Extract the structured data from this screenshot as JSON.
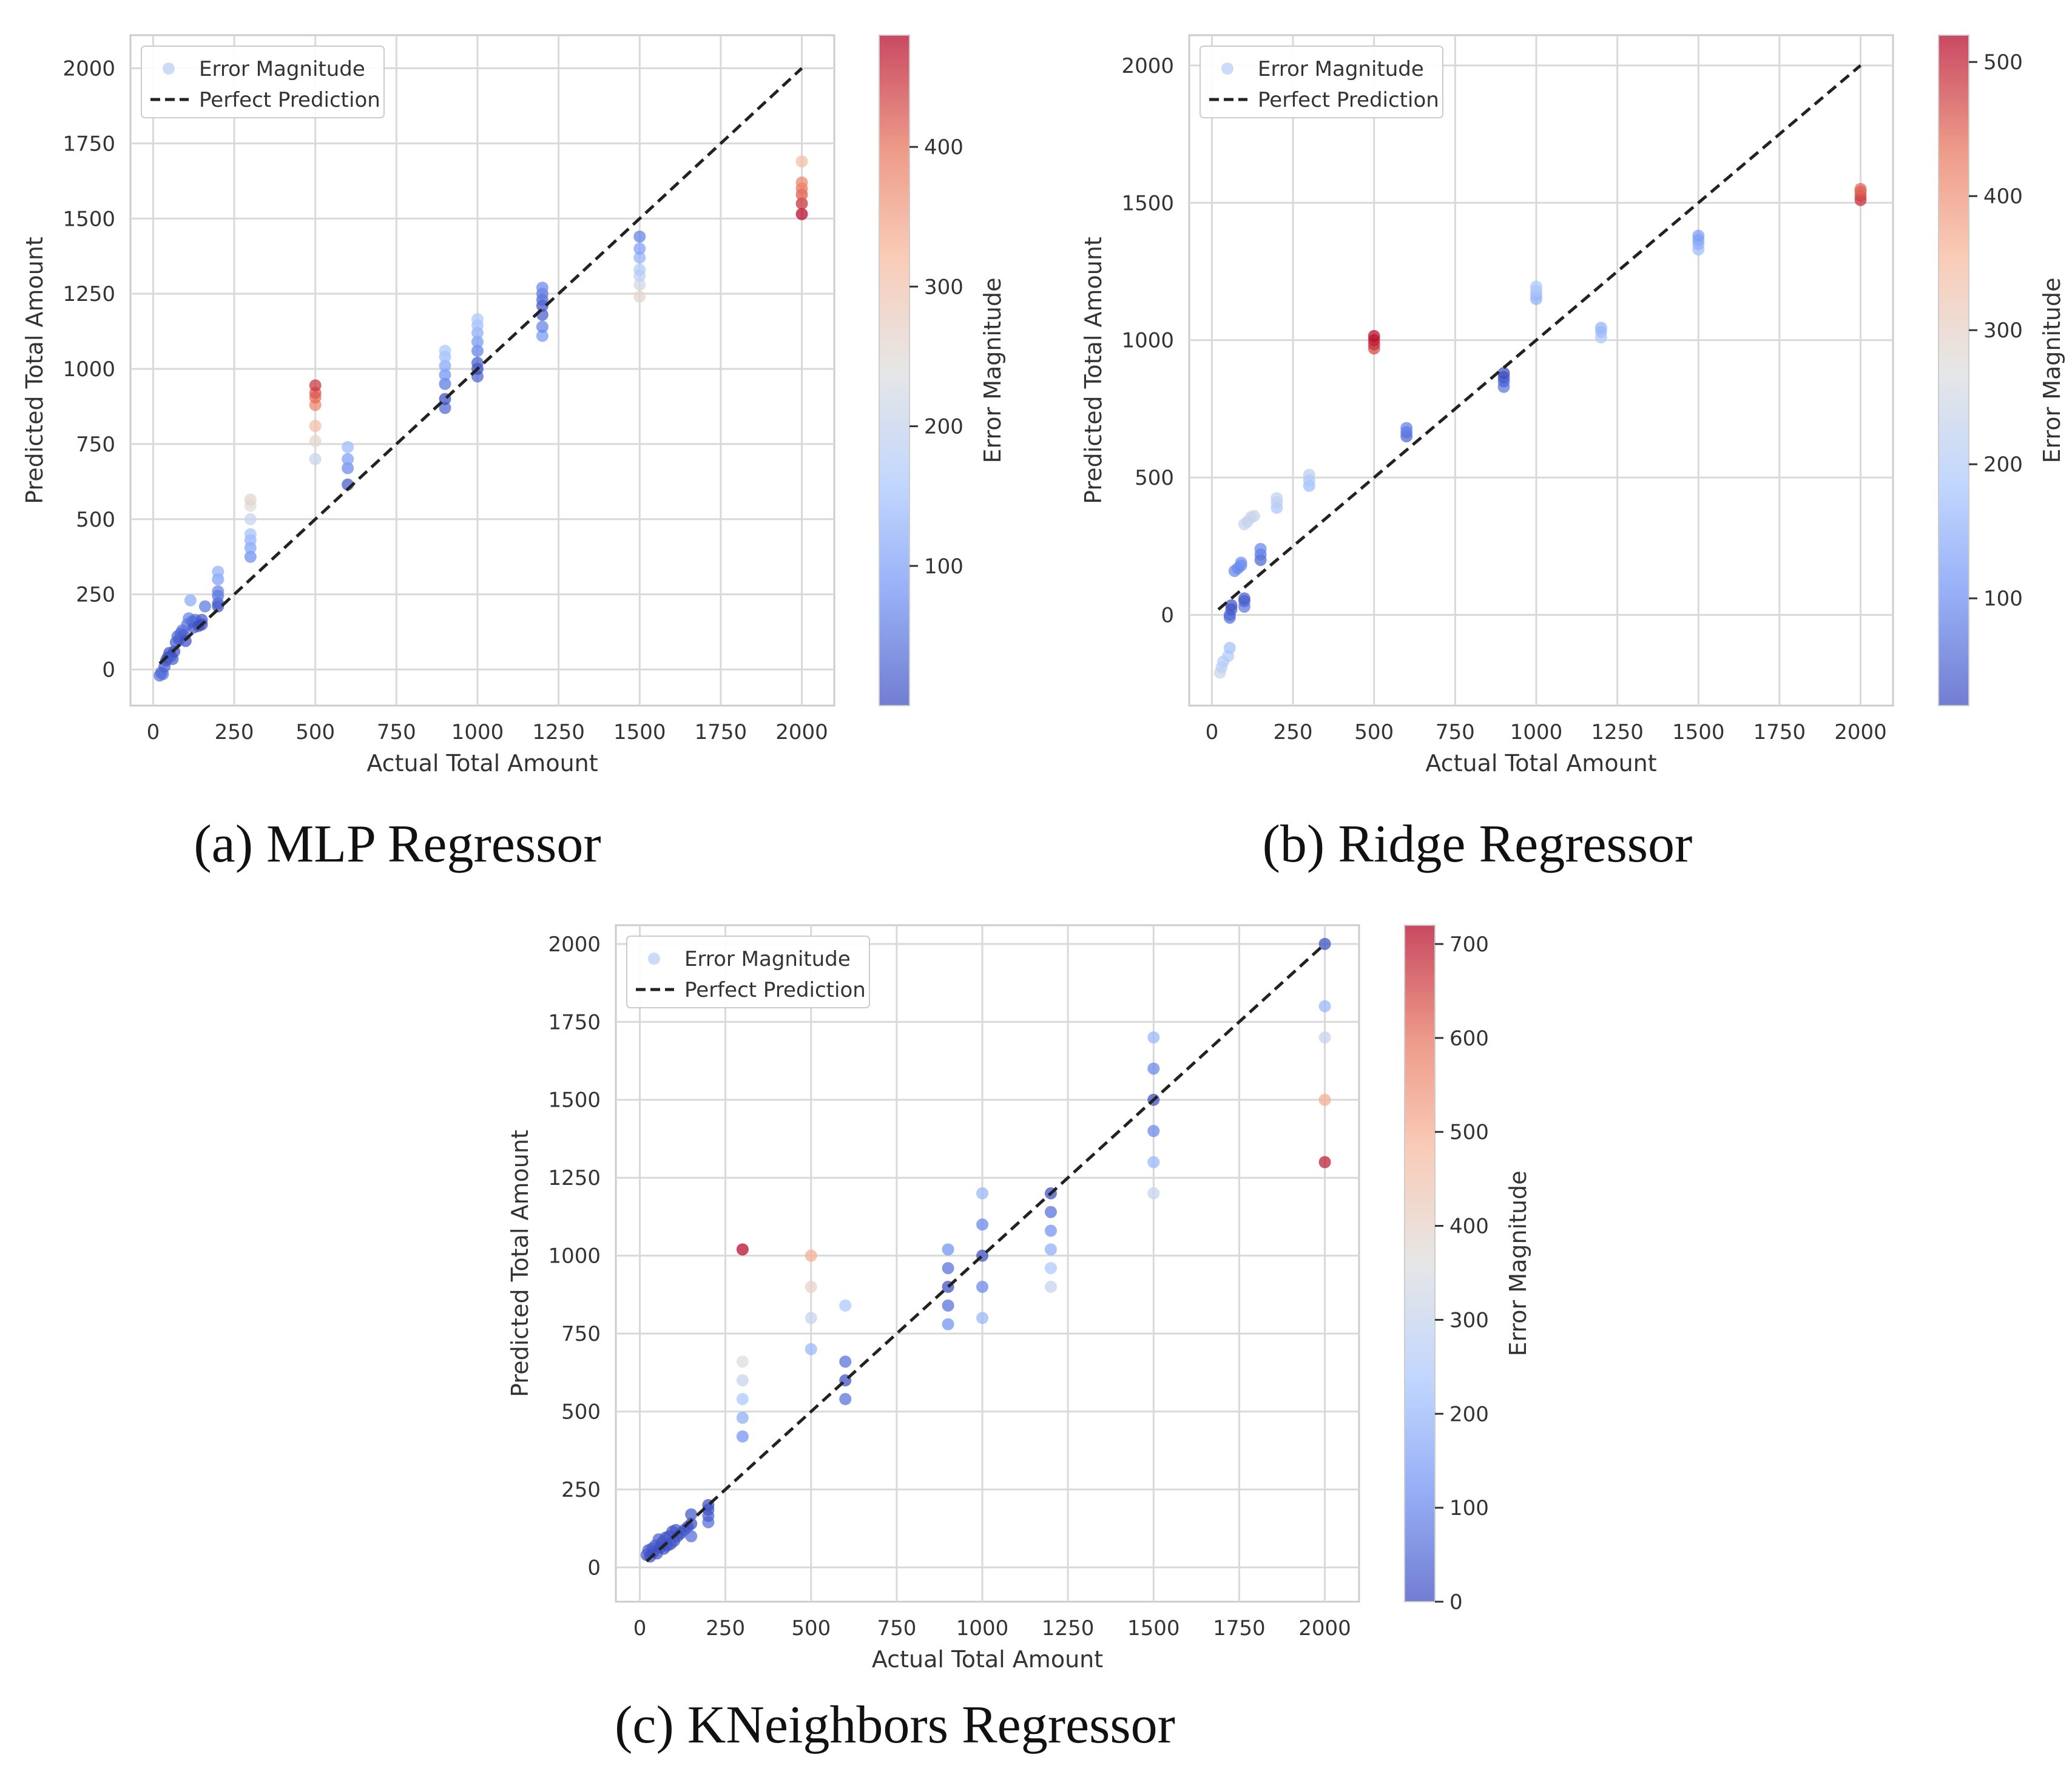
{
  "colormap": [
    "#3b4cc0",
    "#6f92f3",
    "#aac7fd",
    "#dddddd",
    "#f7b89c",
    "#e7745b",
    "#b40426"
  ],
  "chart_data": [
    {
      "type": "scatter",
      "title": "",
      "caption": "(a) MLP Regressor",
      "xlabel": "Actual Total Amount",
      "ylabel": "Predicted Total Amount",
      "xlim": [
        -70,
        2100
      ],
      "ylim": [
        -120,
        2110
      ],
      "xticks": [
        0,
        250,
        500,
        750,
        1000,
        1250,
        1500,
        1750,
        2000
      ],
      "yticks": [
        0,
        250,
        500,
        750,
        1000,
        1250,
        1500,
        1750,
        2000
      ],
      "grid": true,
      "legend": {
        "position": "top-left",
        "entries": [
          "Error Magnitude",
          "Perfect Prediction"
        ]
      },
      "diagonal": {
        "from": 20,
        "to": 2000
      },
      "colorbar": {
        "label": "Error Magnitude",
        "min": 0,
        "max": 480,
        "ticks": [
          100,
          200,
          300,
          400
        ]
      },
      "points": [
        [
          20,
          -20
        ],
        [
          25,
          -10
        ],
        [
          30,
          -15
        ],
        [
          35,
          10
        ],
        [
          40,
          30
        ],
        [
          45,
          40
        ],
        [
          50,
          55
        ],
        [
          55,
          45
        ],
        [
          60,
          35
        ],
        [
          65,
          60
        ],
        [
          70,
          90
        ],
        [
          75,
          110
        ],
        [
          80,
          100
        ],
        [
          85,
          120
        ],
        [
          90,
          130
        ],
        [
          95,
          115
        ],
        [
          100,
          95
        ],
        [
          105,
          150
        ],
        [
          110,
          170
        ],
        [
          115,
          230
        ],
        [
          120,
          160
        ],
        [
          125,
          140
        ],
        [
          130,
          165
        ],
        [
          140,
          145
        ],
        [
          150,
          165
        ],
        [
          160,
          210
        ],
        [
          150,
          150
        ],
        [
          200,
          210
        ],
        [
          200,
          220
        ],
        [
          200,
          245
        ],
        [
          200,
          260
        ],
        [
          200,
          300
        ],
        [
          200,
          325
        ],
        [
          300,
          375
        ],
        [
          300,
          405
        ],
        [
          300,
          430
        ],
        [
          300,
          450
        ],
        [
          300,
          500
        ],
        [
          300,
          545
        ],
        [
          300,
          565
        ],
        [
          500,
          700
        ],
        [
          500,
          760
        ],
        [
          500,
          810
        ],
        [
          500,
          880
        ],
        [
          500,
          905
        ],
        [
          500,
          920
        ],
        [
          500,
          945
        ],
        [
          600,
          615
        ],
        [
          600,
          670
        ],
        [
          600,
          700
        ],
        [
          600,
          740
        ],
        [
          900,
          870
        ],
        [
          900,
          900
        ],
        [
          900,
          950
        ],
        [
          900,
          980
        ],
        [
          900,
          1010
        ],
        [
          900,
          1040
        ],
        [
          900,
          1060
        ],
        [
          1000,
          975
        ],
        [
          1000,
          1000
        ],
        [
          1000,
          1020
        ],
        [
          1000,
          1060
        ],
        [
          1000,
          1090
        ],
        [
          1000,
          1120
        ],
        [
          1000,
          1145
        ],
        [
          1000,
          1165
        ],
        [
          1200,
          1110
        ],
        [
          1200,
          1140
        ],
        [
          1200,
          1180
        ],
        [
          1200,
          1210
        ],
        [
          1200,
          1230
        ],
        [
          1200,
          1250
        ],
        [
          1200,
          1270
        ],
        [
          1500,
          1240
        ],
        [
          1500,
          1280
        ],
        [
          1500,
          1310
        ],
        [
          1500,
          1330
        ],
        [
          1500,
          1370
        ],
        [
          1500,
          1400
        ],
        [
          1500,
          1440
        ],
        [
          2000,
          1515
        ],
        [
          2000,
          1550
        ],
        [
          2000,
          1580
        ],
        [
          2000,
          1600
        ],
        [
          2000,
          1620
        ],
        [
          2000,
          1690
        ]
      ]
    },
    {
      "type": "scatter",
      "title": "",
      "caption": "(b) Ridge Regressor",
      "xlabel": "Actual Total Amount",
      "ylabel": "Predicted Total Amount",
      "xlim": [
        -70,
        2100
      ],
      "ylim": [
        -330,
        2110
      ],
      "xticks": [
        0,
        250,
        500,
        750,
        1000,
        1250,
        1500,
        1750,
        2000
      ],
      "yticks": [
        0,
        500,
        1000,
        1500,
        2000
      ],
      "grid": true,
      "legend": {
        "position": "top-left",
        "entries": [
          "Error Magnitude",
          "Perfect Prediction"
        ]
      },
      "diagonal": {
        "from": 20,
        "to": 2000
      },
      "colorbar": {
        "label": "Error Magnitude",
        "min": 20,
        "max": 520,
        "ticks": [
          100,
          200,
          300,
          400,
          500
        ]
      },
      "points": [
        [
          25,
          -210
        ],
        [
          30,
          -190
        ],
        [
          35,
          -170
        ],
        [
          50,
          -150
        ],
        [
          55,
          -120
        ],
        [
          55,
          -10
        ],
        [
          55,
          0
        ],
        [
          60,
          20
        ],
        [
          60,
          35
        ],
        [
          70,
          160
        ],
        [
          80,
          170
        ],
        [
          90,
          180
        ],
        [
          90,
          190
        ],
        [
          100,
          30
        ],
        [
          100,
          50
        ],
        [
          100,
          60
        ],
        [
          100,
          330
        ],
        [
          110,
          340
        ],
        [
          120,
          355
        ],
        [
          130,
          360
        ],
        [
          150,
          200
        ],
        [
          150,
          220
        ],
        [
          150,
          240
        ],
        [
          200,
          390
        ],
        [
          200,
          410
        ],
        [
          200,
          425
        ],
        [
          300,
          470
        ],
        [
          300,
          490
        ],
        [
          300,
          510
        ],
        [
          500,
          970
        ],
        [
          500,
          985
        ],
        [
          500,
          1000
        ],
        [
          500,
          1015
        ],
        [
          600,
          650
        ],
        [
          600,
          665
        ],
        [
          600,
          680
        ],
        [
          900,
          830
        ],
        [
          900,
          850
        ],
        [
          900,
          865
        ],
        [
          900,
          880
        ],
        [
          1000,
          1150
        ],
        [
          1000,
          1165
        ],
        [
          1000,
          1180
        ],
        [
          1000,
          1195
        ],
        [
          1200,
          1010
        ],
        [
          1200,
          1030
        ],
        [
          1200,
          1045
        ],
        [
          1500,
          1330
        ],
        [
          1500,
          1350
        ],
        [
          1500,
          1365
        ],
        [
          1500,
          1380
        ],
        [
          2000,
          1510
        ],
        [
          2000,
          1525
        ],
        [
          2000,
          1540
        ],
        [
          2000,
          1550
        ]
      ]
    },
    {
      "type": "scatter",
      "title": "",
      "caption": "(c) KNeighbors Regressor",
      "xlabel": "Actual Total Amount",
      "ylabel": "Predicted Total Amount",
      "xlim": [
        -70,
        2100
      ],
      "ylim": [
        -110,
        2060
      ],
      "xticks": [
        0,
        250,
        500,
        750,
        1000,
        1250,
        1500,
        1750,
        2000
      ],
      "yticks": [
        0,
        250,
        500,
        750,
        1000,
        1250,
        1500,
        1750,
        2000
      ],
      "grid": true,
      "legend": {
        "position": "top-left",
        "entries": [
          "Error Magnitude",
          "Perfect Prediction"
        ]
      },
      "diagonal": {
        "from": 20,
        "to": 2000
      },
      "colorbar": {
        "label": "Error Magnitude",
        "min": 0,
        "max": 720,
        "ticks": [
          0,
          100,
          200,
          300,
          400,
          500,
          600,
          700
        ]
      },
      "points": [
        [
          20,
          40
        ],
        [
          25,
          55
        ],
        [
          30,
          35
        ],
        [
          35,
          60
        ],
        [
          40,
          50
        ],
        [
          45,
          70
        ],
        [
          50,
          45
        ],
        [
          55,
          90
        ],
        [
          60,
          65
        ],
        [
          65,
          80
        ],
        [
          70,
          60
        ],
        [
          75,
          95
        ],
        [
          80,
          70
        ],
        [
          85,
          100
        ],
        [
          90,
          75
        ],
        [
          95,
          115
        ],
        [
          100,
          85
        ],
        [
          105,
          120
        ],
        [
          110,
          100
        ],
        [
          120,
          110
        ],
        [
          130,
          120
        ],
        [
          140,
          130
        ],
        [
          150,
          100
        ],
        [
          150,
          140
        ],
        [
          150,
          170
        ],
        [
          200,
          145
        ],
        [
          200,
          165
        ],
        [
          200,
          185
        ],
        [
          200,
          200
        ],
        [
          300,
          1020
        ],
        [
          300,
          420
        ],
        [
          300,
          480
        ],
        [
          300,
          540
        ],
        [
          300,
          600
        ],
        [
          300,
          660
        ],
        [
          500,
          700
        ],
        [
          500,
          800
        ],
        [
          500,
          900
        ],
        [
          500,
          1000
        ],
        [
          600,
          540
        ],
        [
          600,
          600
        ],
        [
          600,
          660
        ],
        [
          600,
          840
        ],
        [
          900,
          780
        ],
        [
          900,
          840
        ],
        [
          900,
          900
        ],
        [
          900,
          960
        ],
        [
          900,
          1020
        ],
        [
          1000,
          800
        ],
        [
          1000,
          900
        ],
        [
          1000,
          1000
        ],
        [
          1000,
          1100
        ],
        [
          1000,
          1200
        ],
        [
          1200,
          900
        ],
        [
          1200,
          960
        ],
        [
          1200,
          1020
        ],
        [
          1200,
          1080
        ],
        [
          1200,
          1140
        ],
        [
          1200,
          1200
        ],
        [
          1500,
          1200
        ],
        [
          1500,
          1300
        ],
        [
          1500,
          1400
        ],
        [
          1500,
          1500
        ],
        [
          1500,
          1600
        ],
        [
          1500,
          1700
        ],
        [
          2000,
          1300
        ],
        [
          2000,
          1500
        ],
        [
          2000,
          1700
        ],
        [
          2000,
          1800
        ],
        [
          2000,
          2000
        ]
      ]
    }
  ]
}
